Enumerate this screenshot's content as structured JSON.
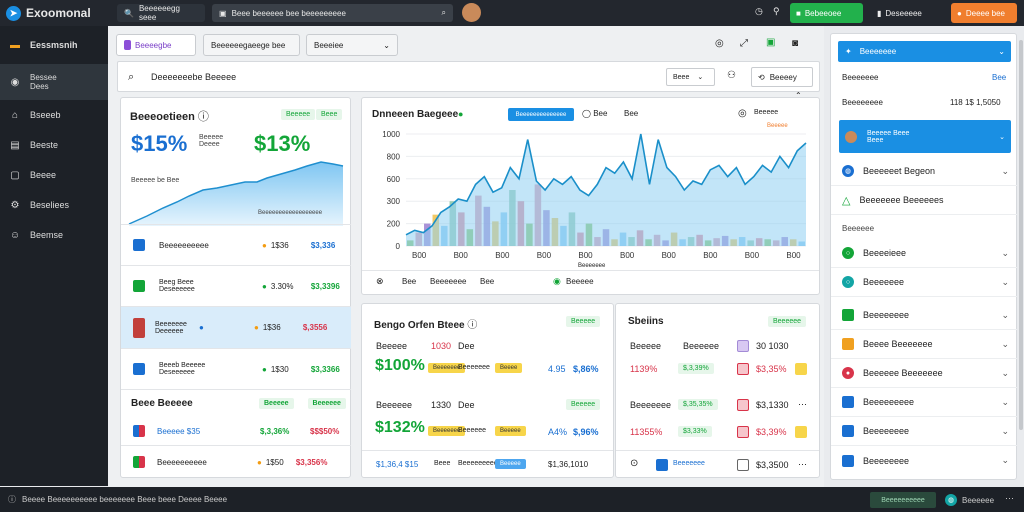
{
  "app": {
    "title": "Exoomonal"
  },
  "topbar": {
    "search1": "Beeeeeegg seee",
    "search2": "Beee beeeeee bee beeeeeeeee",
    "btn_green": "Bebeeoee",
    "btn_white": "Deseeeee",
    "btn_orange": "Deeee bee"
  },
  "sidebar": {
    "items": [
      {
        "label": "Eessmsnih",
        "icon": "folder-icon"
      },
      {
        "label": "Bessee\nDees",
        "icon": "compass-icon"
      },
      {
        "label": "Bseeeb",
        "icon": "home-icon"
      },
      {
        "label": "Beeste",
        "icon": "briefcase-icon"
      },
      {
        "label": "Beeee",
        "icon": "document-icon"
      },
      {
        "label": "Beseliees",
        "icon": "settings-icon"
      },
      {
        "label": "Beemse",
        "icon": "user-icon"
      }
    ]
  },
  "tabs": [
    {
      "label": "Beeeegbe"
    },
    {
      "label": "Beeeeeegaeege bee"
    },
    {
      "label": "Beeeiee"
    }
  ],
  "searchbar": {
    "text": "Deeeeeeebe Beeeee",
    "select": "Beee",
    "btn": "Beeeey"
  },
  "summary": {
    "title": "Beeeoetieen",
    "badge1": "Beeeee",
    "badge2": "Beee",
    "pct1": "$15%",
    "pct2": "$13%",
    "label_a": "Beeeee\nDeeee",
    "trend_label": "Beeeee be Bee",
    "axis": "Beeeeeeeeeeeeeeeeee"
  },
  "list": {
    "rows": [
      {
        "name": "Beeeeeeeeee",
        "v1": "1$36",
        "v2": "$3,336",
        "c": "b",
        "color": "#1a6fd1"
      },
      {
        "name": "Beeg Beee\nDeseeeeee",
        "v1": "3.30%",
        "v2": "$3,3396",
        "c": "g",
        "color": "#13a538"
      },
      {
        "name": "Beeeeeee\nDeeeeee",
        "v1": "1$36",
        "v2": "$,3556",
        "c": "r",
        "color": "#c2403b"
      },
      {
        "name": "Beeeb Beeeee\nDeseeeeee",
        "v1": "1$30",
        "v2": "$3,3366",
        "c": "g",
        "color": "#1a6fd1"
      }
    ],
    "section": "Beee Beeeee",
    "section_badge1": "Beeeee",
    "section_badge2": "Beeeeee",
    "rows2": [
      {
        "name": "Beeeee  $35",
        "v1": "$,3,36%",
        "v2": "$$$50%",
        "c": "g"
      },
      {
        "name": "Beeeeeeeeee",
        "v1": "1$50",
        "v2": "$3,356%",
        "c": "g"
      }
    ]
  },
  "main_chart": {
    "title": "Dnneeen Baegeee",
    "btn": "Beeeeeeeeeeeeee",
    "ctrl1": "Bee",
    "ctrl2": "Bee",
    "ctrl3": "Beeeee",
    "footer1": "Bee",
    "footer2": "Beeeeeee",
    "footer3": "Bee",
    "footer4": "Beeeee",
    "xaxis": "Beeeeeee"
  },
  "chart_data": {
    "type": "area",
    "x": [
      "B00",
      "B00",
      "B00",
      "B00",
      "B00",
      "B00",
      "B00",
      "B00",
      "B00",
      "B00"
    ],
    "yticks": [
      "1000",
      "800",
      "600",
      "300",
      "200",
      "0"
    ],
    "line": [
      10,
      14,
      12,
      18,
      30,
      35,
      42,
      40,
      55,
      62,
      48,
      52,
      70,
      60,
      95,
      58,
      50,
      60,
      55,
      62,
      50,
      45,
      55,
      70,
      65,
      75,
      60,
      100,
      55,
      95,
      70,
      62,
      50,
      58,
      55,
      68,
      72,
      62,
      70,
      55,
      62,
      72,
      66,
      80,
      70,
      85,
      92
    ],
    "bars": [
      5,
      12,
      20,
      28,
      18,
      40,
      30,
      15,
      45,
      35,
      22,
      30,
      50,
      40,
      20,
      55,
      32,
      25,
      18,
      30,
      12,
      20,
      8,
      15,
      6,
      12,
      8,
      14,
      6,
      10,
      5,
      12,
      6,
      8,
      10,
      5,
      7,
      9,
      6,
      8,
      5,
      7,
      6,
      5,
      8,
      6,
      4
    ]
  },
  "panel_a": {
    "title": "Bengo Orfen Bteee",
    "badge": "Beeeee",
    "head": [
      "Beeeee",
      "1030",
      "Dee"
    ],
    "val1": "$100%",
    "row1": [
      "Beeeeeee",
      "Beeeeeee",
      "Beeee",
      "4.95",
      "$,86%"
    ],
    "head2": [
      "Beeeeee",
      "1330",
      "Dee"
    ],
    "val2": "$132%",
    "badge2": "Beeeee",
    "row2": [
      "Beeeeeee",
      "Beeeeee",
      "Beeeee",
      "A4%",
      "$,96%"
    ],
    "footer": [
      "$1,36,4 $15",
      "Beee",
      "Beeeeeeeee",
      "Beeeee",
      "$1,36,1010"
    ]
  },
  "panel_b": {
    "title": "Sbeiins",
    "badge": "Beeeeee",
    "rows": [
      {
        "l": "Beeeee",
        "m": "Beeeeee",
        "n": "30 1030"
      },
      {
        "l": "1139%",
        "m": "$,3,39%",
        "n": "$3,35%"
      },
      {
        "l": "Beeeeeee",
        "m": "$,35,35%",
        "n": "$3,1330"
      },
      {
        "l": "11355%",
        "m": "$3,33%",
        "n": "$3,39%"
      },
      {
        "l": "Beeeeeee",
        "m": "",
        "n": "$3,3500"
      }
    ]
  },
  "right": {
    "top_btn": "Beeeeeee",
    "line1": [
      "Beeeeeee",
      "Bee"
    ],
    "line2": [
      "Beeeeeeee",
      "118 1$ 1,5050"
    ],
    "active": "Beeeee Beee\nBeee",
    "items": [
      {
        "label": "Beeeeeet Begeon",
        "icon": "globe-icon",
        "color": "#1a6fd1"
      },
      {
        "label": "Beeeeeee Beeeeees",
        "icon": "triangle-icon",
        "color": "#13a538"
      }
    ],
    "section": "Beeeeee",
    "items2": [
      {
        "label": "Beeeeieee",
        "icon": "circle-icon",
        "color": "#13a538"
      },
      {
        "label": "Beeeeeee",
        "icon": "circle-icon",
        "color": "#13a538"
      },
      {
        "label": "Beeeeeeee",
        "icon": "grid-icon",
        "color": "#13a538"
      },
      {
        "label": "Beeee Beeeeeee",
        "icon": "bag-icon",
        "color": "#f0a020"
      },
      {
        "label": "Beeeeee Beeeeeee",
        "icon": "record-icon",
        "color": "#d8344a"
      },
      {
        "label": "Beeeeeeeee",
        "icon": "box-icon",
        "color": "#1a6fd1"
      },
      {
        "label": "Beeeeeeee",
        "icon": "box-icon",
        "color": "#1a6fd1"
      },
      {
        "label": "Beeeeeeee",
        "icon": "grid-icon",
        "color": "#1a6fd1"
      }
    ]
  },
  "footer": {
    "text": "Beeee  Beeeeeeeeee beeeeeee  Beee beee   Deeee Beeee",
    "btn1": "Beeeeeeeeee",
    "btn2": "Beeeeee"
  }
}
